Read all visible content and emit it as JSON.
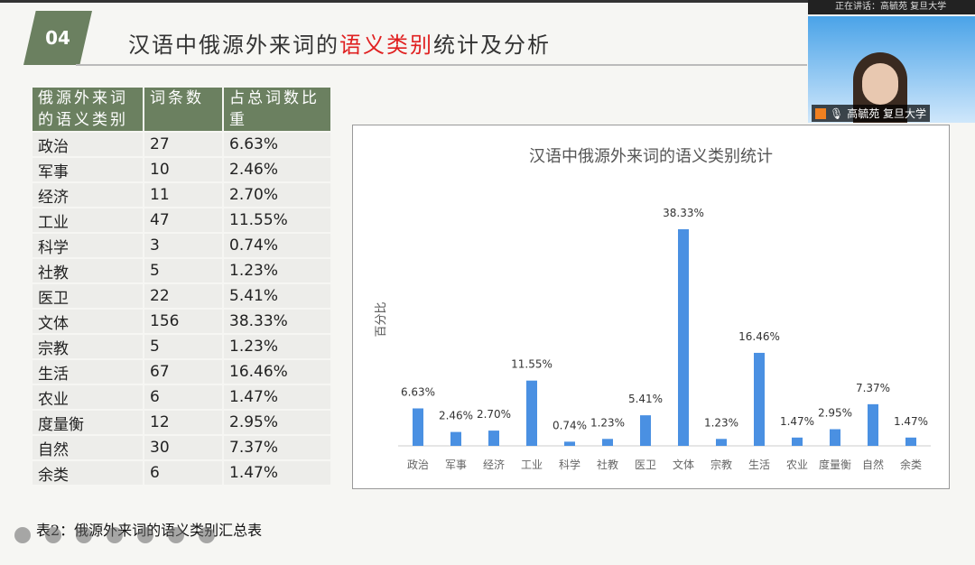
{
  "slide": {
    "number": "04",
    "title_pre": "汉语中俄源外来词的",
    "title_highlight": "语义类别",
    "title_post": "统计及分析",
    "caption": "表2：俄源外来词的语义类别汇总表"
  },
  "table": {
    "headers": [
      "俄源外来词的语义类别",
      "词条数",
      "占总词数比重"
    ],
    "rows": [
      [
        "政治",
        "27",
        "6.63%"
      ],
      [
        "军事",
        "10",
        "2.46%"
      ],
      [
        "经济",
        "11",
        "2.70%"
      ],
      [
        "工业",
        "47",
        "11.55%"
      ],
      [
        "科学",
        "3",
        "0.74%"
      ],
      [
        "社教",
        "5",
        "1.23%"
      ],
      [
        "医卫",
        "22",
        "5.41%"
      ],
      [
        "文体",
        "156",
        "38.33%"
      ],
      [
        "宗教",
        "5",
        "1.23%"
      ],
      [
        "生活",
        "67",
        "16.46%"
      ],
      [
        "农业",
        "6",
        "1.47%"
      ],
      [
        "度量衡",
        "12",
        "2.95%"
      ],
      [
        "自然",
        "30",
        "7.37%"
      ],
      [
        "余类",
        "6",
        "1.47%"
      ]
    ]
  },
  "video": {
    "speaking": "正在讲话：高毓苑 复旦大学",
    "name": "高毓苑 复旦大学"
  },
  "chart_data": {
    "type": "bar",
    "title": "汉语中俄源外来词的语义类别统计",
    "ylabel": "百分比",
    "xlabel": "",
    "categories": [
      "政治",
      "军事",
      "经济",
      "工业",
      "科学",
      "社教",
      "医卫",
      "文体",
      "宗教",
      "生活",
      "农业",
      "度量衡",
      "自然",
      "余类"
    ],
    "values": [
      6.63,
      2.46,
      2.7,
      11.55,
      0.74,
      1.23,
      5.41,
      38.33,
      1.23,
      16.46,
      1.47,
      2.95,
      7.37,
      1.47
    ],
    "data_labels": [
      "6.63%",
      "2.46%",
      "2.70%",
      "11.55%",
      "0.74%",
      "1.23%",
      "5.41%",
      "38.33%",
      "1.23%",
      "16.46%",
      "1.47%",
      "2.95%",
      "7.37%",
      "1.47%"
    ],
    "bar_color": "#4a90e2",
    "grid": false
  }
}
